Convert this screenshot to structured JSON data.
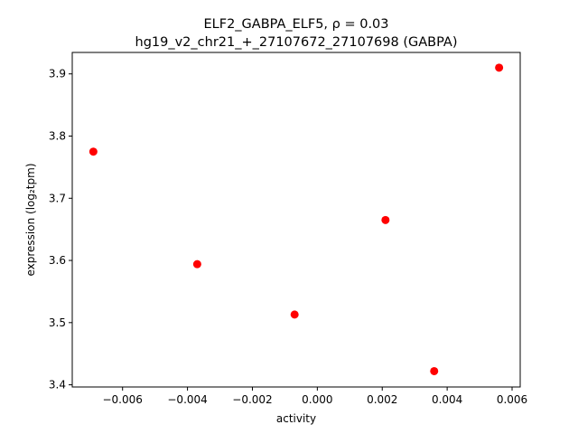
{
  "chart_data": {
    "type": "scatter",
    "title_line1": "ELF2_GABPA_ELF5, ρ = 0.03",
    "title_line2": "hg19_v2_chr21_+_27107672_27107698 (GABPA)",
    "xlabel": "activity",
    "ylabel": "expression (log₂tpm)",
    "xlim": [
      -0.00755,
      0.00625
    ],
    "ylim": [
      3.3965,
      3.9345
    ],
    "xticks": [
      -0.006,
      -0.004,
      -0.002,
      0.0,
      0.002,
      0.004,
      0.006
    ],
    "xtick_labels": [
      "−0.006",
      "−0.004",
      "−0.002",
      "0.000",
      "0.002",
      "0.004",
      "0.006"
    ],
    "yticks": [
      3.4,
      3.5,
      3.6,
      3.7,
      3.8,
      3.9
    ],
    "ytick_labels": [
      "3.4",
      "3.5",
      "3.6",
      "3.7",
      "3.8",
      "3.9"
    ],
    "marker_color": "#ff0000",
    "grid": false,
    "points": [
      {
        "x": -0.0069,
        "y": 3.775
      },
      {
        "x": -0.0037,
        "y": 3.594
      },
      {
        "x": -0.0007,
        "y": 3.513
      },
      {
        "x": 0.0021,
        "y": 3.665
      },
      {
        "x": 0.0036,
        "y": 3.422
      },
      {
        "x": 0.0056,
        "y": 3.91
      }
    ]
  }
}
